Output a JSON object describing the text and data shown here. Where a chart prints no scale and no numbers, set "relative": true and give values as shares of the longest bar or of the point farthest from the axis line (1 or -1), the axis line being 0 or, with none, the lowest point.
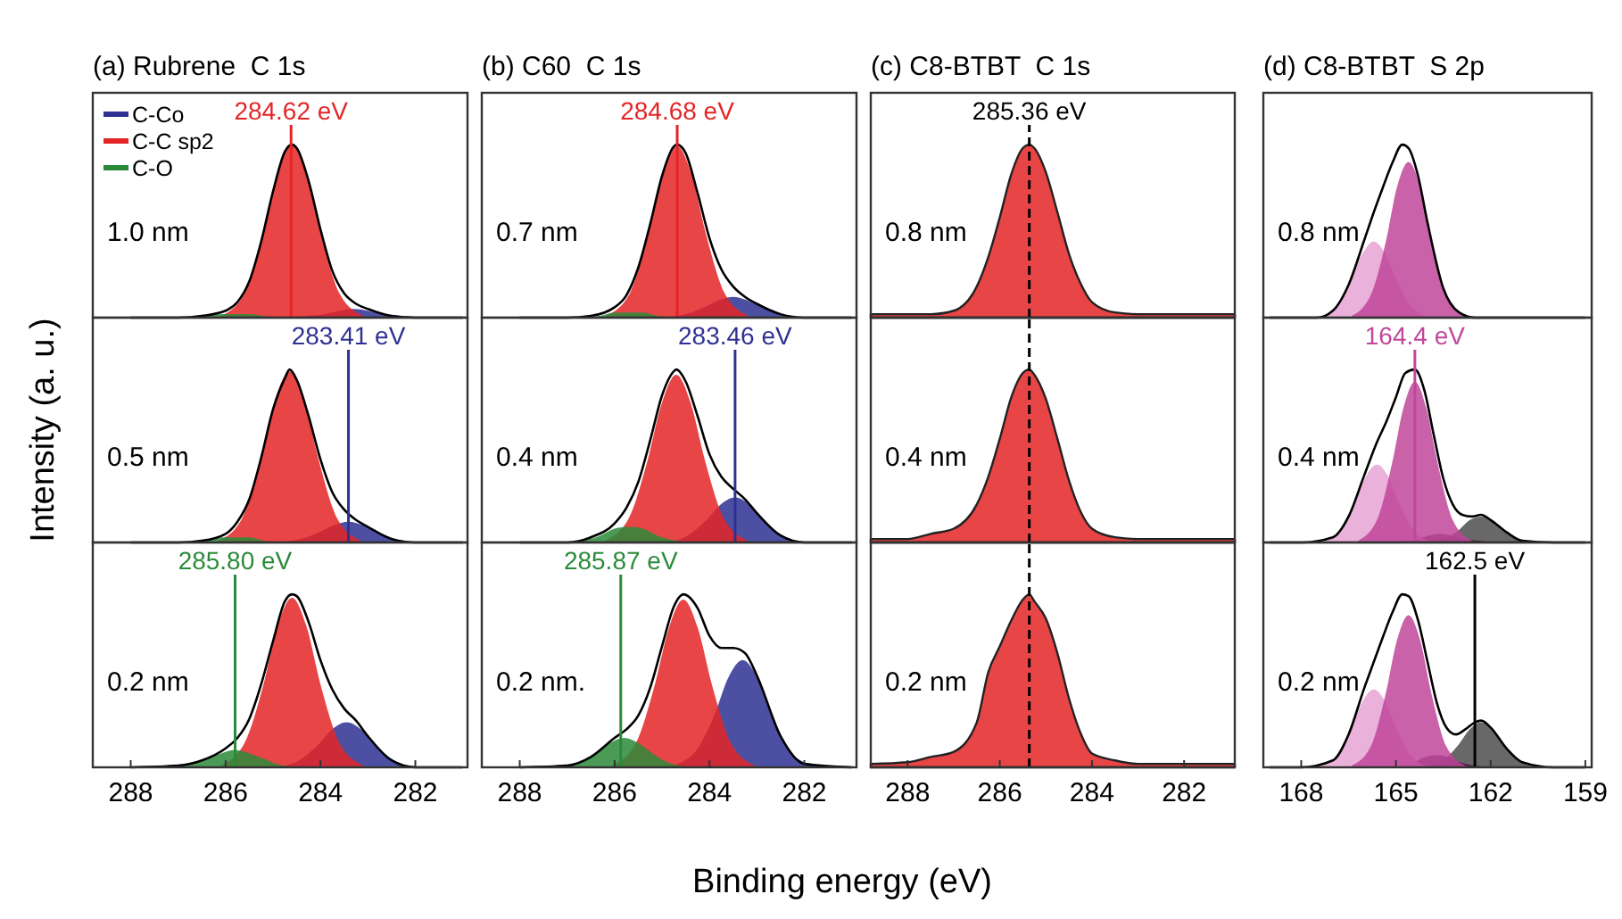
{
  "chart_data": [
    {
      "type": "area",
      "relative": true,
      "title": "(a) Rubrene  C 1s",
      "xlim": [
        288.8,
        280.9
      ],
      "legend": "top left",
      "annotations": [
        "1.0 nm"
      ],
      "ref_lines": [
        {
          "axis": "x",
          "value": 284.62,
          "label": "284.62 eV",
          "color": "#e42526"
        }
      ],
      "series": [
        {
          "name": "C-Co",
          "color": "#2e3192",
          "x": [
            284.8,
            284.3,
            283.9,
            283.6,
            283.3,
            283,
            282.7,
            282.3,
            281.8
          ],
          "values": [
            0,
            0.01,
            0.02,
            0.04,
            0.05,
            0.04,
            0.02,
            0.01,
            0
          ]
        },
        {
          "name": "C-C sp2",
          "color": "#e42526",
          "x": [
            286.1,
            285.6,
            285.2,
            284.9,
            284.6,
            284.3,
            284,
            283.6,
            283.1
          ],
          "values": [
            0.01,
            0.14,
            0.49,
            0.84,
            1,
            0.84,
            0.49,
            0.14,
            0.01
          ]
        },
        {
          "name": "C-O",
          "color": "#2b8a3a",
          "x": [
            287.3,
            286.8,
            286.4,
            286.1,
            285.8,
            285.5,
            285.2,
            284.8,
            284.3
          ],
          "values": [
            0,
            0,
            0.01,
            0.02,
            0.02,
            0.02,
            0.01,
            0,
            0
          ]
        },
        {
          "type": "line",
          "color": "#000000",
          "x": [
            288,
            287,
            286.5,
            286,
            285.75,
            285.5,
            285.25,
            285,
            284.75,
            284.6,
            284.5,
            284.25,
            284,
            283.75,
            283.5,
            283.25,
            283,
            282.5,
            282,
            281
          ],
          "values": [
            0,
            0,
            0.01,
            0.04,
            0.09,
            0.21,
            0.44,
            0.73,
            0.96,
            1.0,
            0.98,
            0.79,
            0.51,
            0.27,
            0.14,
            0.08,
            0.05,
            0.01,
            0,
            0
          ]
        }
      ]
    },
    {
      "type": "area",
      "relative": true,
      "ylabel": "Intensity (a. u.)",
      "xlim": [
        288.8,
        280.9
      ],
      "annotations": [
        "0.5 nm"
      ],
      "ref_lines": [
        {
          "axis": "x",
          "value": 283.41,
          "label": "283.41 eV",
          "color": "#2e3192"
        }
      ],
      "series": [
        {
          "color": "#2e3192",
          "x": [
            284.91,
            284.41,
            284.01,
            283.71,
            283.41,
            283.11,
            282.81,
            282.41,
            281.91
          ],
          "values": [
            0,
            0.02,
            0.06,
            0.1,
            0.12,
            0.1,
            0.06,
            0.02,
            0
          ]
        },
        {
          "color": "#e42526",
          "x": [
            286.15,
            285.65,
            285.25,
            284.95,
            284.65,
            284.35,
            284.05,
            283.65,
            283.15
          ],
          "values": [
            0.01,
            0.14,
            0.49,
            0.83,
            0.99,
            0.83,
            0.49,
            0.14,
            0.01
          ]
        },
        {
          "color": "#2b8a3a",
          "x": [
            287.3,
            286.8,
            286.4,
            286.1,
            285.8,
            285.5,
            285.2,
            284.8,
            284.3
          ],
          "values": [
            0,
            0,
            0.01,
            0.03,
            0.03,
            0.03,
            0.01,
            0,
            0
          ]
        },
        {
          "type": "line",
          "color": "#000000",
          "x": [
            288,
            287,
            286.5,
            286,
            285.75,
            285.5,
            285.25,
            285,
            284.75,
            284.65,
            284.5,
            284.25,
            284,
            283.75,
            283.5,
            283.25,
            283,
            282.5,
            282,
            281
          ],
          "values": [
            0,
            0,
            0.01,
            0.05,
            0.12,
            0.25,
            0.49,
            0.77,
            0.95,
            1.0,
            0.94,
            0.73,
            0.48,
            0.29,
            0.19,
            0.13,
            0.09,
            0.02,
            0,
            0
          ]
        }
      ]
    },
    {
      "type": "area",
      "relative": true,
      "xlim": [
        288.8,
        280.9
      ],
      "xticks": [
        288,
        286,
        284,
        282
      ],
      "annotations": [
        "0.2 nm"
      ],
      "ref_lines": [
        {
          "axis": "x",
          "value": 285.8,
          "label": "285.80 eV",
          "color": "#2b8a3a"
        }
      ],
      "series": [
        {
          "color": "#2e3192",
          "x": [
            284.95,
            284.45,
            284.05,
            283.75,
            283.45,
            283.15,
            282.85,
            282.45,
            281.95
          ],
          "values": [
            0,
            0.04,
            0.13,
            0.22,
            0.26,
            0.22,
            0.13,
            0.04,
            0
          ]
        },
        {
          "color": "#e42526",
          "x": [
            286.1,
            285.6,
            285.2,
            284.9,
            284.6,
            284.3,
            284,
            283.6,
            283.1
          ],
          "values": [
            0.01,
            0.14,
            0.48,
            0.82,
            0.98,
            0.82,
            0.48,
            0.14,
            0.01
          ]
        },
        {
          "color": "#2b8a3a",
          "x": [
            287.3,
            286.8,
            286.4,
            286.1,
            285.8,
            285.5,
            285.2,
            284.8,
            284.3
          ],
          "values": [
            0,
            0.01,
            0.05,
            0.08,
            0.1,
            0.08,
            0.05,
            0.01,
            0
          ]
        },
        {
          "type": "line",
          "color": "#000000",
          "x": [
            288,
            287,
            286.5,
            286,
            285.75,
            285.5,
            285.25,
            285,
            284.75,
            284.6,
            284.5,
            284.25,
            284,
            283.75,
            283.5,
            283.25,
            283,
            282.5,
            282,
            281
          ],
          "values": [
            0,
            0.01,
            0.04,
            0.11,
            0.17,
            0.28,
            0.48,
            0.73,
            0.96,
            1.0,
            0.99,
            0.84,
            0.62,
            0.45,
            0.34,
            0.27,
            0.18,
            0.04,
            0,
            0
          ]
        }
      ]
    },
    {
      "type": "area",
      "relative": true,
      "title": "(b) C60  C 1s",
      "xlim": [
        288.8,
        280.9
      ],
      "annotations": [
        "0.7 nm"
      ],
      "ref_lines": [
        {
          "axis": "x",
          "value": 284.68,
          "label": "284.68 eV",
          "color": "#e42526"
        }
      ],
      "series": [
        {
          "color": "#2e3192",
          "x": [
            285,
            284.5,
            284.1,
            283.8,
            283.5,
            283.2,
            282.9,
            282.5,
            282
          ],
          "values": [
            0,
            0.02,
            0.06,
            0.1,
            0.12,
            0.1,
            0.06,
            0.02,
            0
          ]
        },
        {
          "color": "#e42526",
          "x": [
            286.18,
            285.68,
            285.28,
            284.98,
            284.68,
            284.38,
            284.08,
            283.68,
            283.18
          ],
          "values": [
            0.01,
            0.14,
            0.49,
            0.83,
            0.99,
            0.83,
            0.49,
            0.14,
            0.01
          ]
        },
        {
          "color": "#2b8a3a",
          "x": [
            287.2,
            286.7,
            286.3,
            286,
            285.7,
            285.4,
            285.1,
            284.7,
            284.2
          ],
          "values": [
            0,
            0,
            0.01,
            0.03,
            0.03,
            0.03,
            0.01,
            0,
            0
          ]
        },
        {
          "type": "line",
          "color": "#000000",
          "x": [
            288,
            287,
            286.5,
            286,
            285.75,
            285.5,
            285.25,
            285,
            284.75,
            284.68,
            284.5,
            284.25,
            284,
            283.75,
            283.5,
            283.25,
            283,
            282.5,
            282,
            281
          ],
          "values": [
            0,
            0,
            0.01,
            0.06,
            0.13,
            0.29,
            0.54,
            0.82,
            0.99,
            1.0,
            0.95,
            0.72,
            0.46,
            0.28,
            0.18,
            0.12,
            0.08,
            0.02,
            0,
            0
          ]
        }
      ]
    },
    {
      "type": "area",
      "relative": true,
      "xlim": [
        288.8,
        280.9
      ],
      "annotations": [
        "0.4 nm"
      ],
      "ref_lines": [
        {
          "axis": "x",
          "value": 283.46,
          "label": "283.46 eV",
          "color": "#2e3192"
        }
      ],
      "series": [
        {
          "color": "#2e3192",
          "x": [
            284.96,
            284.46,
            284.06,
            283.76,
            283.46,
            283.16,
            282.86,
            282.46,
            281.96
          ],
          "values": [
            0,
            0.04,
            0.13,
            0.22,
            0.26,
            0.22,
            0.13,
            0.04,
            0
          ]
        },
        {
          "color": "#e42526",
          "x": [
            286.2,
            285.7,
            285.3,
            285,
            284.7,
            284.4,
            284.1,
            283.7,
            283.2
          ],
          "values": [
            0.01,
            0.14,
            0.48,
            0.81,
            0.97,
            0.81,
            0.48,
            0.14,
            0.01
          ]
        },
        {
          "color": "#2b8a3a",
          "x": [
            287.2,
            286.7,
            286.3,
            286,
            285.7,
            285.4,
            285.1,
            284.7,
            284.2
          ],
          "values": [
            0,
            0.01,
            0.04,
            0.08,
            0.09,
            0.08,
            0.04,
            0.01,
            0
          ]
        },
        {
          "type": "line",
          "color": "#000000",
          "x": [
            288,
            287,
            286.5,
            286,
            285.75,
            285.5,
            285.25,
            285,
            284.75,
            284.7,
            284.5,
            284.25,
            284,
            283.75,
            283.5,
            283.25,
            283,
            282.5,
            282,
            281
          ],
          "values": [
            0,
            0,
            0.03,
            0.11,
            0.2,
            0.35,
            0.59,
            0.85,
            0.99,
            1.0,
            0.93,
            0.73,
            0.51,
            0.38,
            0.31,
            0.25,
            0.17,
            0.04,
            0,
            0
          ]
        }
      ]
    },
    {
      "type": "area",
      "relative": true,
      "xlabel": "Binding energy (eV)",
      "xlim": [
        288.8,
        280.9
      ],
      "xticks": [
        288,
        286,
        284,
        282
      ],
      "annotations": [
        "0.2 nm."
      ],
      "ref_lines": [
        {
          "axis": "x",
          "value": 285.87,
          "label": "285.87 eV",
          "color": "#2b8a3a"
        }
      ],
      "series": [
        {
          "color": "#2e3192",
          "x": [
            284.8,
            284.3,
            283.9,
            283.6,
            283.3,
            283,
            282.7,
            282.3,
            281.8
          ],
          "values": [
            0.01,
            0.09,
            0.3,
            0.52,
            0.62,
            0.52,
            0.3,
            0.09,
            0.01
          ]
        },
        {
          "color": "#e42526",
          "x": [
            286.05,
            285.55,
            285.15,
            284.85,
            284.55,
            284.25,
            283.95,
            283.55,
            283.05
          ],
          "values": [
            0.01,
            0.14,
            0.48,
            0.81,
            0.97,
            0.81,
            0.48,
            0.14,
            0.01
          ]
        },
        {
          "color": "#2b8a3a",
          "x": [
            287.3,
            286.8,
            286.4,
            286.1,
            285.8,
            285.5,
            285.2,
            284.8,
            284.3
          ],
          "values": [
            0,
            0.02,
            0.08,
            0.14,
            0.17,
            0.14,
            0.08,
            0.02,
            0
          ]
        },
        {
          "type": "line",
          "color": "#000000",
          "x": [
            288,
            287,
            286.5,
            286,
            285.75,
            285.5,
            285.25,
            285,
            284.75,
            284.55,
            284.25,
            284,
            283.75,
            283.5,
            283.25,
            283,
            282.5,
            282,
            281
          ],
          "values": [
            0,
            0.01,
            0.06,
            0.17,
            0.22,
            0.3,
            0.46,
            0.7,
            0.93,
            1.0,
            0.92,
            0.76,
            0.69,
            0.69,
            0.66,
            0.53,
            0.18,
            0.02,
            0
          ]
        }
      ]
    },
    {
      "type": "area",
      "relative": true,
      "title": "(c) C8-BTBT  C 1s",
      "xlim": [
        288.8,
        280.9
      ],
      "annotations": [
        "0.8 nm"
      ],
      "ref_lines": [
        {
          "axis": "x",
          "value": 285.36,
          "label": "285.36 eV",
          "color": "#000000",
          "line_style": "dashed"
        }
      ],
      "series": [
        {
          "color": "#e42526",
          "x": [
            288.8,
            288,
            287.5,
            287,
            286.5,
            286.25,
            286,
            285.75,
            285.5,
            285.36,
            285.25,
            285,
            284.75,
            284.5,
            284.25,
            284,
            283.5,
            283,
            282,
            280.9
          ],
          "values": [
            0.02,
            0.02,
            0.02,
            0.04,
            0.18,
            0.35,
            0.58,
            0.83,
            0.98,
            1.0,
            0.98,
            0.84,
            0.61,
            0.37,
            0.2,
            0.09,
            0.03,
            0.02,
            0.02,
            0.02
          ],
          "line_style": "solid"
        }
      ]
    },
    {
      "type": "area",
      "relative": true,
      "xlim": [
        288.8,
        280.9
      ],
      "annotations": [
        "0.4 nm"
      ],
      "ref_lines": [
        {
          "axis": "x",
          "value": 285.36,
          "color": "#000000",
          "line_style": "dashed"
        }
      ],
      "series": [
        {
          "color": "#e42526",
          "x": [
            288.8,
            288,
            287.5,
            287,
            286.5,
            286.25,
            286,
            285.75,
            285.5,
            285.36,
            285.25,
            285,
            284.75,
            284.5,
            284.25,
            284,
            283.5,
            283,
            282,
            280.9
          ],
          "values": [
            0.02,
            0.02,
            0.05,
            0.08,
            0.22,
            0.38,
            0.6,
            0.84,
            0.98,
            1.0,
            0.97,
            0.83,
            0.6,
            0.36,
            0.18,
            0.08,
            0.03,
            0.02,
            0.02,
            0.02
          ],
          "line_style": "solid"
        }
      ]
    },
    {
      "type": "area",
      "relative": true,
      "xlim": [
        288.8,
        280.9
      ],
      "xticks": [
        288,
        286,
        284,
        282
      ],
      "annotations": [
        "0.2 nm"
      ],
      "ref_lines": [
        {
          "axis": "x",
          "value": 285.36,
          "color": "#000000",
          "line_style": "dashed"
        }
      ],
      "series": [
        {
          "color": "#e42526",
          "x": [
            288.8,
            288,
            287.5,
            287,
            286.5,
            286.25,
            286,
            285.75,
            285.5,
            285.36,
            285.25,
            285,
            284.75,
            284.5,
            284.25,
            284,
            283.5,
            283,
            282,
            280.9
          ],
          "values": [
            0.02,
            0.03,
            0.06,
            0.09,
            0.26,
            0.55,
            0.7,
            0.85,
            0.97,
            1.0,
            0.96,
            0.86,
            0.66,
            0.4,
            0.2,
            0.08,
            0.04,
            0.02,
            0.02,
            0.02
          ],
          "line_style": "solid"
        }
      ]
    },
    {
      "type": "area",
      "relative": true,
      "title": "(d) C8-BTBT  S 2p",
      "xlim": [
        169.2,
        158.8
      ],
      "annotations": [
        "0.8 nm"
      ],
      "series": [
        {
          "color": "#e6a3d4",
          "x": [
            167.5,
            166.9,
            166.42,
            166.06,
            165.7,
            165.34,
            164.98,
            164.5,
            163.9
          ],
          "values": [
            0,
            0.06,
            0.22,
            0.37,
            0.44,
            0.37,
            0.22,
            0.06,
            0
          ]
        },
        {
          "color": "#c0479a",
          "x": [
            166.4,
            165.8,
            165.32,
            164.96,
            164.6,
            164.24,
            163.88,
            163.4,
            162.8
          ],
          "values": [
            0.01,
            0.13,
            0.44,
            0.76,
            0.9,
            0.76,
            0.44,
            0.13,
            0.01
          ]
        },
        {
          "type": "line",
          "color": "#000000",
          "x": [
            169,
            168,
            167.5,
            167,
            166.5,
            166,
            165.7,
            165.4,
            165.1,
            164.8,
            164.6,
            164.3,
            164,
            163.5,
            163,
            162.5,
            162,
            160,
            159
          ],
          "values": [
            0,
            0,
            0,
            0.04,
            0.19,
            0.45,
            0.61,
            0.76,
            0.9,
            1.0,
            0.98,
            0.82,
            0.55,
            0.17,
            0.03,
            0,
            0,
            0,
            0
          ]
        }
      ]
    },
    {
      "type": "area",
      "relative": true,
      "xlim": [
        169.2,
        158.8
      ],
      "annotations": [
        "0.4 nm"
      ],
      "ref_lines": [
        {
          "axis": "x",
          "value": 164.4,
          "label": "164.4 eV",
          "color": "#c0479a"
        }
      ],
      "series": [
        {
          "color": "#4d4d4d",
          "x": [
            164.1,
            163.5,
            163.02,
            162.66,
            162.3,
            161.94,
            161.58,
            161.1,
            160.5
          ],
          "values": [
            0,
            0.02,
            0.07,
            0.13,
            0.15,
            0.13,
            0.07,
            0.02,
            0
          ]
        },
        {
          "color": "#4a1a40",
          "x": [
            165.4,
            164.8,
            164.32,
            163.96,
            163.6,
            163.24,
            162.88,
            162.4,
            161.8
          ],
          "values": [
            0,
            0.01,
            0.02,
            0.04,
            0.05,
            0.04,
            0.02,
            0.01,
            0
          ]
        },
        {
          "color": "#e6a3d4",
          "x": [
            167.4,
            166.8,
            166.32,
            165.96,
            165.6,
            165.24,
            164.88,
            164.4,
            163.8
          ],
          "values": [
            0,
            0.06,
            0.22,
            0.38,
            0.45,
            0.38,
            0.22,
            0.06,
            0
          ]
        },
        {
          "color": "#c0479a",
          "x": [
            166.2,
            165.6,
            165.12,
            164.76,
            164.4,
            164.04,
            163.68,
            163.2,
            162.6
          ],
          "values": [
            0.01,
            0.13,
            0.46,
            0.78,
            0.93,
            0.78,
            0.46,
            0.13,
            0.01
          ]
        },
        {
          "type": "line",
          "color": "#000000",
          "x": [
            169,
            168,
            167,
            166.5,
            166,
            165.6,
            165.3,
            165,
            164.7,
            164.4,
            164.1,
            163.8,
            163.5,
            163.2,
            162.9,
            162.6,
            162.3,
            162,
            161.5,
            161,
            160,
            159
          ],
          "values": [
            0,
            0,
            0.03,
            0.15,
            0.39,
            0.58,
            0.7,
            0.84,
            0.98,
            1.0,
            0.88,
            0.62,
            0.37,
            0.22,
            0.16,
            0.15,
            0.16,
            0.13,
            0.06,
            0.01,
            0,
            0
          ]
        }
      ]
    },
    {
      "type": "area",
      "relative": true,
      "xlim": [
        169.2,
        158.8
      ],
      "xticks": [
        168,
        165,
        162,
        159
      ],
      "annotations": [
        "0.2 nm"
      ],
      "ref_lines": [
        {
          "axis": "x",
          "value": 162.5,
          "label": "162.5 eV",
          "color": "#000000"
        }
      ],
      "series": [
        {
          "color": "#4d4d4d",
          "x": [
            164.1,
            163.5,
            163.02,
            162.66,
            162.3,
            161.94,
            161.58,
            161.1,
            160.5
          ],
          "values": [
            0,
            0.04,
            0.13,
            0.22,
            0.26,
            0.22,
            0.13,
            0.04,
            0
          ]
        },
        {
          "color": "#4a1a40",
          "x": [
            165.5,
            164.9,
            164.42,
            164.06,
            163.7,
            163.34,
            162.98,
            162.5,
            161.9
          ],
          "values": [
            0,
            0.01,
            0.03,
            0.06,
            0.07,
            0.06,
            0.03,
            0.01,
            0
          ]
        },
        {
          "color": "#e6a3d4",
          "x": [
            167.5,
            166.9,
            166.42,
            166.06,
            165.7,
            165.34,
            164.98,
            164.5,
            163.9
          ],
          "values": [
            0,
            0.06,
            0.22,
            0.38,
            0.45,
            0.38,
            0.22,
            0.06,
            0
          ]
        },
        {
          "color": "#c0479a",
          "x": [
            166.4,
            165.8,
            165.32,
            164.96,
            164.6,
            164.24,
            163.88,
            163.4,
            162.8
          ],
          "values": [
            0.01,
            0.12,
            0.43,
            0.74,
            0.88,
            0.74,
            0.43,
            0.12,
            0.01
          ]
        },
        {
          "type": "line",
          "color": "#000000",
          "x": [
            169,
            168,
            167,
            166.5,
            166,
            165.7,
            165.4,
            165.1,
            164.8,
            164.6,
            164.3,
            164,
            163.7,
            163.4,
            163.1,
            162.8,
            162.5,
            162.3,
            162,
            161.5,
            161,
            160,
            159
          ],
          "values": [
            0,
            0,
            0.04,
            0.19,
            0.46,
            0.61,
            0.76,
            0.9,
            1.0,
            0.99,
            0.85,
            0.61,
            0.37,
            0.23,
            0.19,
            0.22,
            0.26,
            0.27,
            0.23,
            0.11,
            0.03,
            0,
            0
          ]
        }
      ]
    }
  ]
}
